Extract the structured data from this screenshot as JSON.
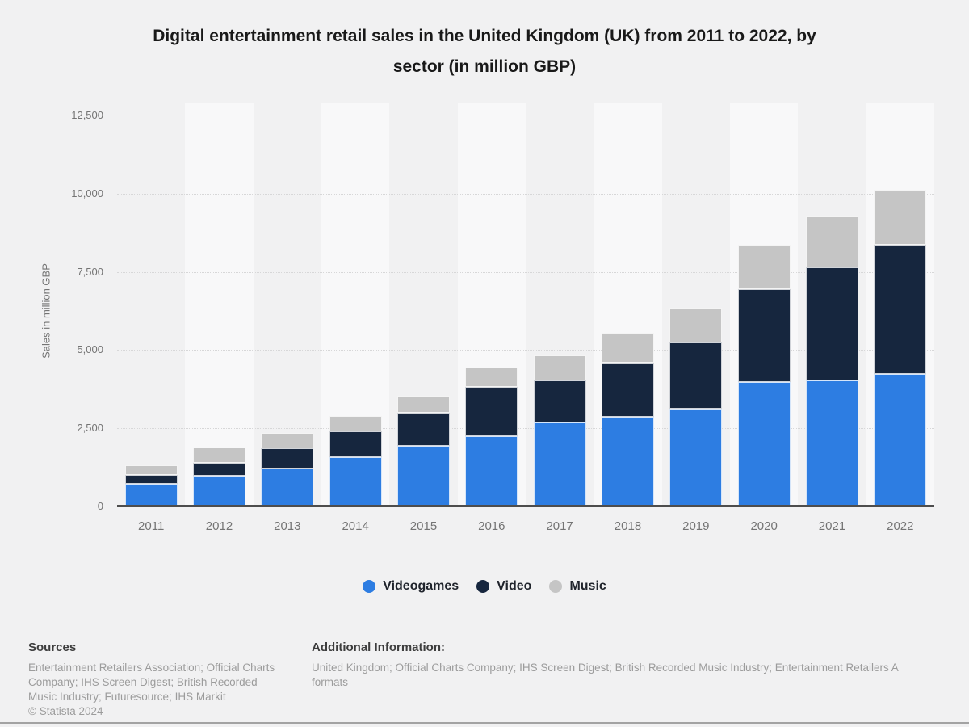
{
  "page": {
    "title_line1": "Digital entertainment retail sales in the United Kingdom (UK) from 2011 to 2022, by",
    "title_line2": "sector (in million GBP)"
  },
  "chart_data": {
    "type": "bar",
    "stacked": true,
    "title": "Digital entertainment retail sales in the United Kingdom (UK) from 2011 to 2022, by sector (in million GBP)",
    "xlabel": "",
    "ylabel": "Sales in million GBP",
    "ylim": [
      0,
      12500
    ],
    "grid": "horizontal-dotted",
    "legend_position": "bottom",
    "y_ticks": [
      {
        "value": 0,
        "label": "0"
      },
      {
        "value": 2500,
        "label": "2,500"
      },
      {
        "value": 5000,
        "label": "5,000"
      },
      {
        "value": 7500,
        "label": "7,500"
      },
      {
        "value": 10000,
        "label": "10,000"
      },
      {
        "value": 12500,
        "label": "12,500"
      }
    ],
    "categories": [
      "2011",
      "2012",
      "2013",
      "2014",
      "2015",
      "2016",
      "2017",
      "2018",
      "2019",
      "2020",
      "2021",
      "2022"
    ],
    "series": [
      {
        "name": "Videogames",
        "color": "#2d7de2",
        "values": [
          720,
          975,
          1215,
          1575,
          1930,
          2255,
          2695,
          2870,
          3125,
          3975,
          4020,
          4225
        ]
      },
      {
        "name": "Video",
        "color": "#16263e",
        "values": [
          285,
          430,
          635,
          815,
          1065,
          1580,
          1335,
          1735,
          2125,
          2965,
          3625,
          4135
        ]
      },
      {
        "name": "Music",
        "color": "#c5c5c5",
        "values": [
          310,
          475,
          495,
          515,
          540,
          620,
          790,
          945,
          1115,
          1435,
          1630,
          1775
        ]
      }
    ]
  },
  "footer": {
    "sources_heading": "Sources",
    "sources_lines": [
      "Entertainment Retailers Association; Official Charts",
      "Company; IHS Screen Digest; British Recorded",
      "Music Industry; Futuresource; IHS Markit"
    ],
    "copyright": "© Statista 2024",
    "additional_heading": "Additional Information:",
    "additional_line1": "United Kingdom; Official Charts Company; IHS Screen Digest; British Recorded Music Industry; Entertainment Retailers A",
    "additional_line2": "formats"
  }
}
